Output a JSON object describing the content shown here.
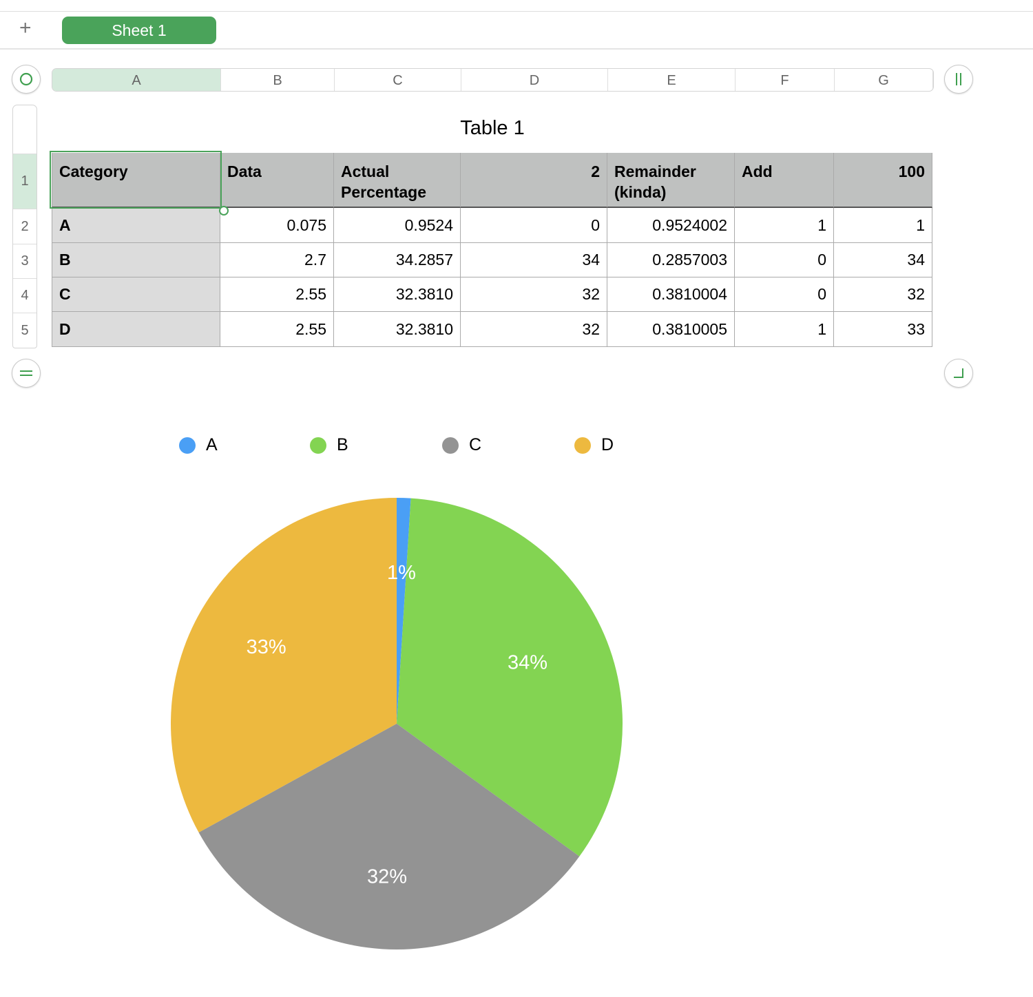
{
  "tabs": {
    "add_label": "+",
    "sheet": "Sheet 1"
  },
  "columns": [
    "A",
    "B",
    "C",
    "D",
    "E",
    "F",
    "G"
  ],
  "rows": [
    "1",
    "2",
    "3",
    "4",
    "5"
  ],
  "table": {
    "title": "Table 1",
    "headers": [
      "Category",
      "Data",
      "Actual Percentage",
      "2",
      "Remainder (kinda)",
      "Add",
      "100"
    ],
    "body": [
      [
        "A",
        "0.075",
        "0.9524",
        "0",
        "0.9524002",
        "1",
        "1"
      ],
      [
        "B",
        "2.7",
        "34.2857",
        "34",
        "0.2857003",
        "0",
        "34"
      ],
      [
        "C",
        "2.55",
        "32.3810",
        "32",
        "0.3810004",
        "0",
        "32"
      ],
      [
        "D",
        "2.55",
        "32.3810",
        "32",
        "0.3810005",
        "1",
        "33"
      ]
    ]
  },
  "chart_data": {
    "type": "pie",
    "categories": [
      "A",
      "B",
      "C",
      "D"
    ],
    "values": [
      1,
      34,
      32,
      33
    ],
    "labels": [
      "1%",
      "34%",
      "32%",
      "33%"
    ],
    "colors": [
      "#4a9ff5",
      "#83d452",
      "#939393",
      "#edb93f"
    ],
    "legend": "top"
  }
}
